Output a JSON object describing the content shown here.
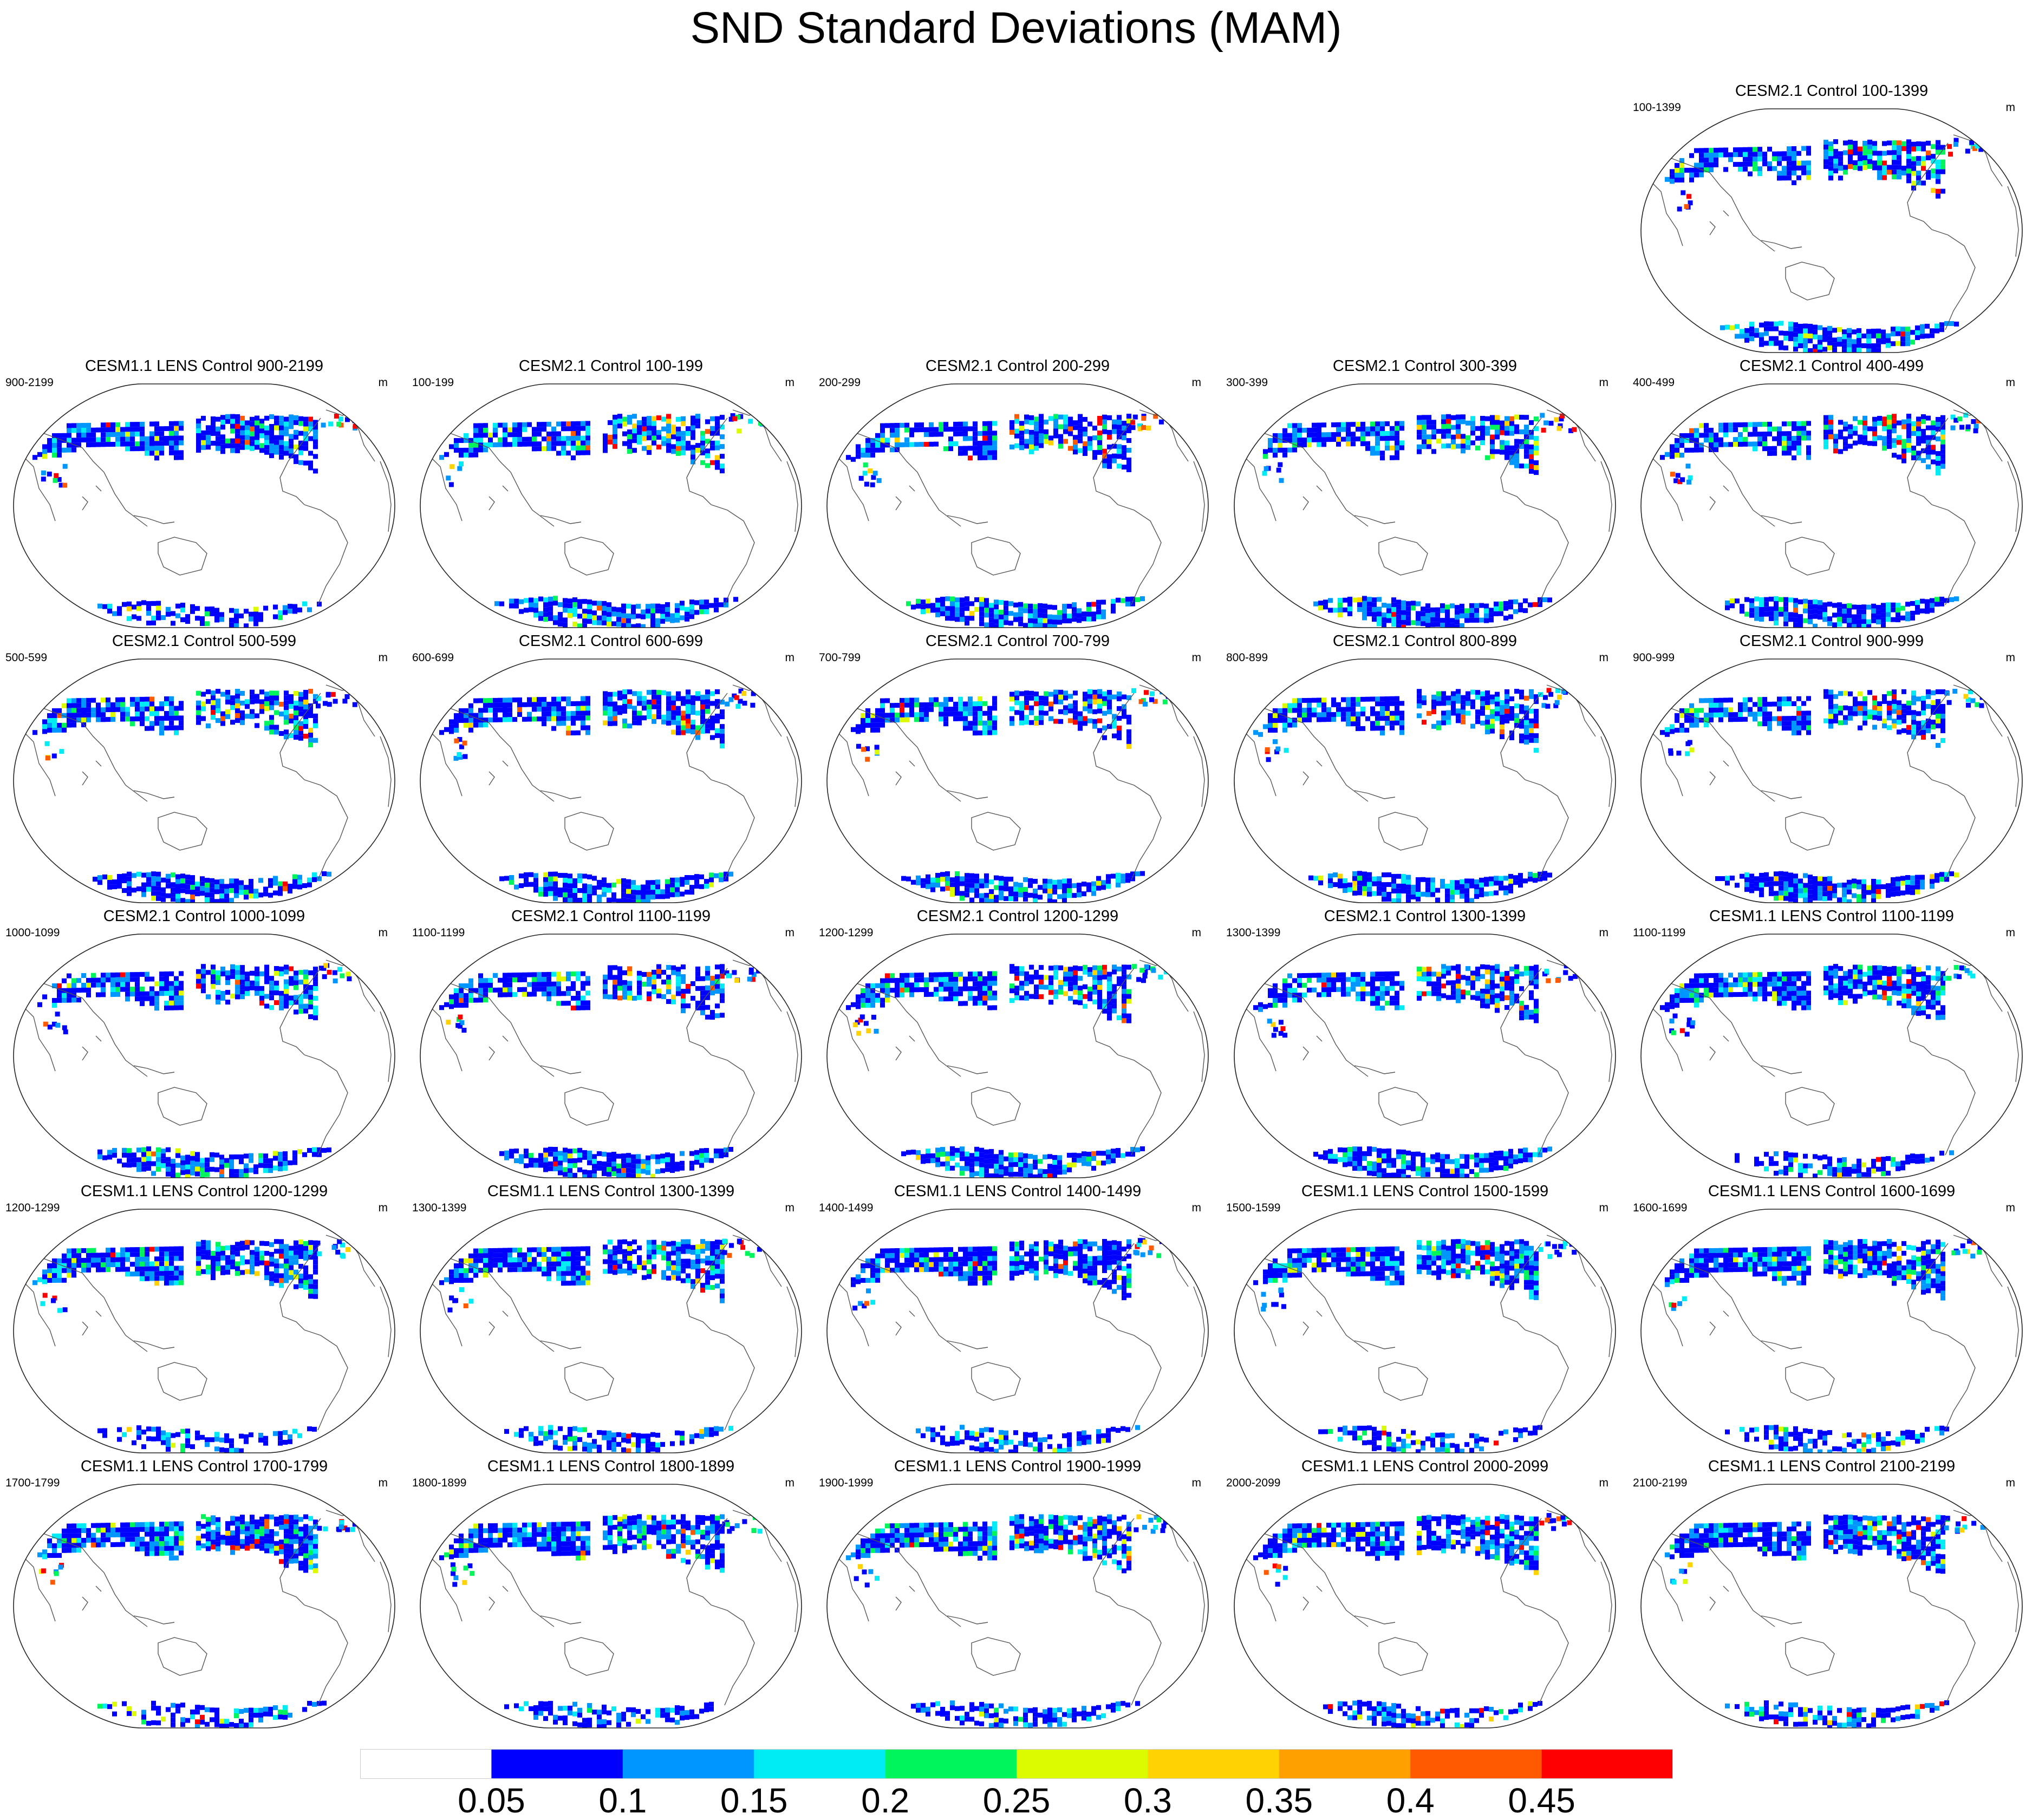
{
  "title": "SND Standard Deviations (MAM)",
  "panels": [
    {
      "title": "CESM2.1 Control 100-1399",
      "left_label": "100-1399",
      "right_label": "m",
      "model": "CESM2.1"
    },
    {
      "title": "CESM1.1 LENS Control 900-2199",
      "left_label": "900-2199",
      "right_label": "m",
      "model": "CESM1.1"
    },
    {
      "title": "CESM2.1 Control 100-199",
      "left_label": "100-199",
      "right_label": "m",
      "model": "CESM2.1"
    },
    {
      "title": "CESM2.1 Control 200-299",
      "left_label": "200-299",
      "right_label": "m",
      "model": "CESM2.1"
    },
    {
      "title": "CESM2.1 Control 300-399",
      "left_label": "300-399",
      "right_label": "m",
      "model": "CESM2.1"
    },
    {
      "title": "CESM2.1 Control 400-499",
      "left_label": "400-499",
      "right_label": "m",
      "model": "CESM2.1"
    },
    {
      "title": "CESM2.1 Control 500-599",
      "left_label": "500-599",
      "right_label": "m",
      "model": "CESM2.1"
    },
    {
      "title": "CESM2.1 Control 600-699",
      "left_label": "600-699",
      "right_label": "m",
      "model": "CESM2.1"
    },
    {
      "title": "CESM2.1 Control 700-799",
      "left_label": "700-799",
      "right_label": "m",
      "model": "CESM2.1"
    },
    {
      "title": "CESM2.1 Control 800-899",
      "left_label": "800-899",
      "right_label": "m",
      "model": "CESM2.1"
    },
    {
      "title": "CESM2.1 Control 900-999",
      "left_label": "900-999",
      "right_label": "m",
      "model": "CESM2.1"
    },
    {
      "title": "CESM2.1 Control 1000-1099",
      "left_label": "1000-1099",
      "right_label": "m",
      "model": "CESM2.1"
    },
    {
      "title": "CESM2.1 Control 1100-1199",
      "left_label": "1100-1199",
      "right_label": "m",
      "model": "CESM2.1"
    },
    {
      "title": "CESM2.1 Control 1200-1299",
      "left_label": "1200-1299",
      "right_label": "m",
      "model": "CESM2.1"
    },
    {
      "title": "CESM2.1 Control 1300-1399",
      "left_label": "1300-1399",
      "right_label": "m",
      "model": "CESM2.1"
    },
    {
      "title": "CESM1.1 LENS Control 1100-1199",
      "left_label": "1100-1199",
      "right_label": "m",
      "model": "CESM1.1"
    },
    {
      "title": "CESM1.1 LENS Control 1200-1299",
      "left_label": "1200-1299",
      "right_label": "m",
      "model": "CESM1.1"
    },
    {
      "title": "CESM1.1 LENS Control 1300-1399",
      "left_label": "1300-1399",
      "right_label": "m",
      "model": "CESM1.1"
    },
    {
      "title": "CESM1.1 LENS Control 1400-1499",
      "left_label": "1400-1499",
      "right_label": "m",
      "model": "CESM1.1"
    },
    {
      "title": "CESM1.1 LENS Control 1500-1599",
      "left_label": "1500-1599",
      "right_label": "m",
      "model": "CESM1.1"
    },
    {
      "title": "CESM1.1 LENS Control 1600-1699",
      "left_label": "1600-1699",
      "right_label": "m",
      "model": "CESM1.1"
    },
    {
      "title": "CESM1.1 LENS Control 1700-1799",
      "left_label": "1700-1799",
      "right_label": "m",
      "model": "CESM1.1"
    },
    {
      "title": "CESM1.1 LENS Control 1800-1899",
      "left_label": "1800-1899",
      "right_label": "m",
      "model": "CESM1.1"
    },
    {
      "title": "CESM1.1 LENS Control 1900-1999",
      "left_label": "1900-1999",
      "right_label": "m",
      "model": "CESM1.1"
    },
    {
      "title": "CESM1.1 LENS Control 2000-2099",
      "left_label": "2000-2099",
      "right_label": "m",
      "model": "CESM1.1"
    },
    {
      "title": "CESM1.1 LENS Control 2100-2199",
      "left_label": "2100-2199",
      "right_label": "m",
      "model": "CESM1.1"
    }
  ],
  "colorbar": {
    "labels": [
      "0.05",
      "0.1",
      "0.15",
      "0.2",
      "0.25",
      "0.3",
      "0.35",
      "0.4",
      "0.45"
    ],
    "colors": [
      "#ffffff",
      "#0000ff",
      "#0096ff",
      "#00ecf4",
      "#00f45c",
      "#dcfa00",
      "#ffd200",
      "#ffa000",
      "#ff5a00",
      "#ff0000"
    ]
  }
}
